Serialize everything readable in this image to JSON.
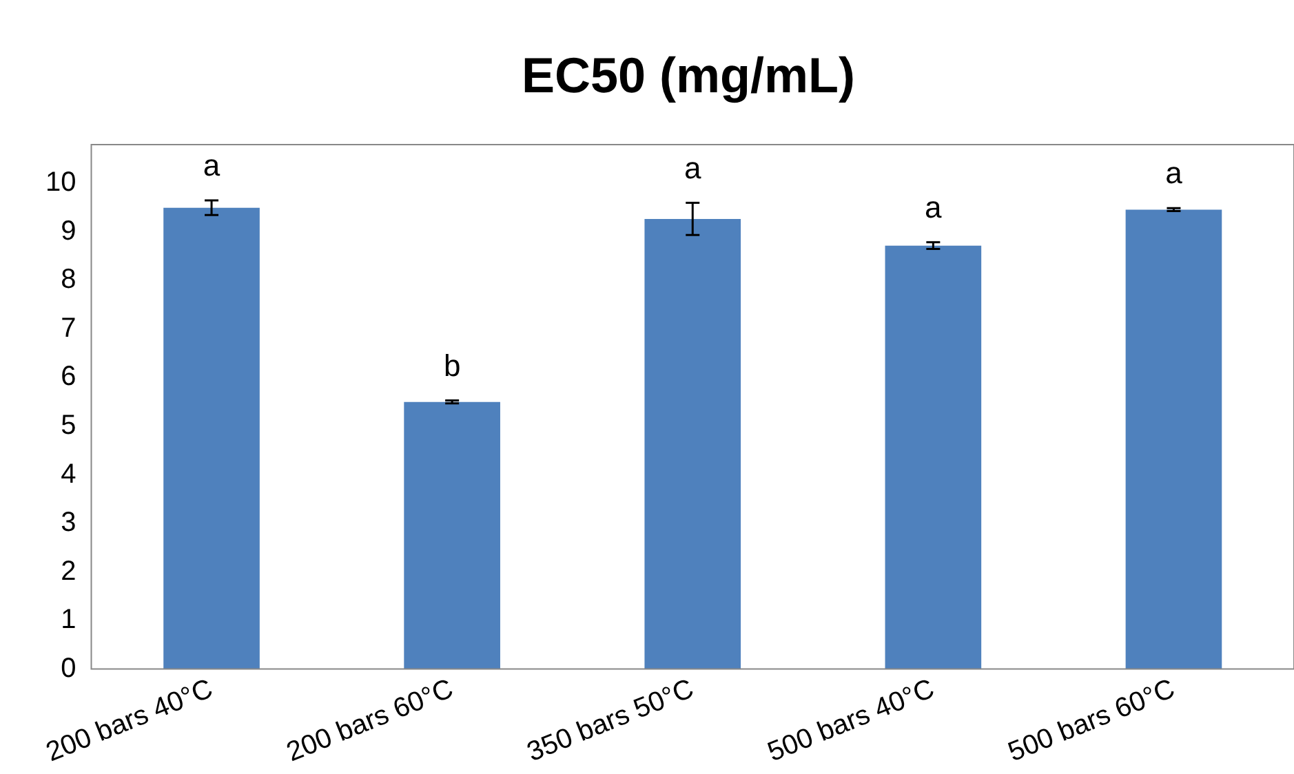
{
  "chart_data": {
    "type": "bar",
    "title": "EC50 (mg/mL)",
    "categories": [
      "200 bars 40°C",
      "200 bars 60°C",
      "350 bars 50°C",
      "500 bars 40°C",
      "500 bars 60°C"
    ],
    "values": [
      9.5,
      5.5,
      9.27,
      8.72,
      9.46
    ],
    "errors": [
      0.15,
      0.03,
      0.33,
      0.07,
      0.03
    ],
    "color": "#4f81bd",
    "ylim": [
      0,
      10.8
    ],
    "yticks": [
      0,
      1,
      2,
      3,
      4,
      5,
      6,
      7,
      8,
      9,
      10
    ],
    "grid": false,
    "legend": false,
    "annotations": [
      "a",
      "b",
      "a",
      "a",
      "a"
    ]
  }
}
